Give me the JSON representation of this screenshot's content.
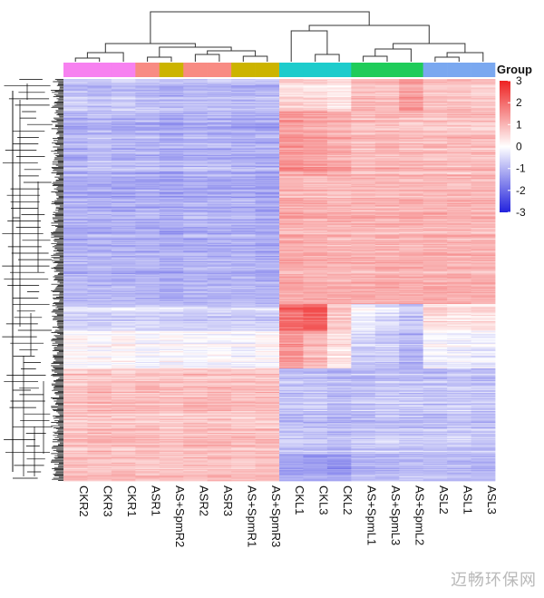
{
  "chart_data": {
    "type": "heatmap",
    "legend_title": "Group",
    "legend_ticks": [
      3,
      2,
      1,
      0,
      -1,
      -2,
      -3
    ],
    "color_range": [
      -3,
      3
    ],
    "colors": {
      "low": "#2222dd",
      "mid": "#ffffff",
      "high": "#ee2222"
    },
    "columns": [
      "CKR2",
      "CKR3",
      "CKR1",
      "ASR1",
      "AS+SpmR2",
      "ASR2",
      "ASR3",
      "AS+SpmR1",
      "AS+SpmR3",
      "CKL1",
      "CKL3",
      "CKL2",
      "AS+SpmL1",
      "AS+SpmL3",
      "AS+SpmL2",
      "ASL2",
      "ASL1",
      "ASL3"
    ],
    "group_colors": [
      "#f781f0",
      "#f781f0",
      "#f781f0",
      "#f88b83",
      "#ccb400",
      "#f88b83",
      "#f88b83",
      "#ccb400",
      "#ccb400",
      "#1dcccc",
      "#1dcccc",
      "#1dcccc",
      "#1fcc5a",
      "#1fcc5a",
      "#1fcc5a",
      "#7aa8f0",
      "#7aa8f0",
      "#7aa8f0"
    ],
    "row_blocks": [
      {
        "rows": 30,
        "values": [
          -0.8,
          -0.9,
          -0.8,
          -0.9,
          -1.0,
          -0.9,
          -0.9,
          -1.0,
          -0.9,
          0.6,
          0.5,
          0.3,
          0.9,
          0.8,
          1.3,
          0.8,
          0.8,
          0.7
        ]
      },
      {
        "rows": 60,
        "values": [
          -1.0,
          -0.9,
          -1.0,
          -1.0,
          -1.1,
          -1.0,
          -1.0,
          -1.1,
          -1.1,
          1.4,
          1.3,
          1.1,
          0.9,
          1.0,
          0.9,
          0.9,
          0.9,
          0.9
        ]
      },
      {
        "rows": 120,
        "values": [
          -1.1,
          -1.1,
          -1.1,
          -1.1,
          -1.2,
          -1.1,
          -1.1,
          -1.1,
          -1.2,
          1.1,
          1.0,
          1.0,
          1.0,
          1.0,
          1.0,
          1.0,
          1.0,
          1.0
        ]
      },
      {
        "rows": 25,
        "values": [
          -0.5,
          -0.6,
          -0.5,
          -0.5,
          -0.6,
          -0.6,
          -0.6,
          -0.6,
          -0.6,
          2.0,
          2.2,
          0.8,
          -0.2,
          -0.4,
          -0.7,
          0.5,
          0.4,
          0.4
        ]
      },
      {
        "rows": 35,
        "values": [
          0.1,
          0.0,
          0.1,
          -0.1,
          0.0,
          -0.1,
          0.0,
          -0.1,
          0.0,
          1.4,
          1.0,
          0.4,
          -0.6,
          -0.7,
          -1.0,
          -0.1,
          -0.2,
          -0.2
        ]
      },
      {
        "rows": 80,
        "values": [
          0.8,
          0.9,
          0.8,
          0.9,
          0.8,
          0.9,
          0.9,
          0.8,
          0.9,
          -0.8,
          -0.8,
          -0.9,
          -0.8,
          -0.7,
          -0.8,
          -0.8,
          -0.7,
          -0.8
        ]
      },
      {
        "rows": 25,
        "values": [
          1.0,
          0.9,
          1.0,
          0.9,
          0.9,
          1.0,
          1.0,
          0.9,
          1.0,
          -1.1,
          -1.2,
          -1.3,
          -0.9,
          -0.9,
          -0.8,
          -0.8,
          -0.8,
          -0.9
        ]
      }
    ]
  },
  "watermark": "迈畅环保网"
}
